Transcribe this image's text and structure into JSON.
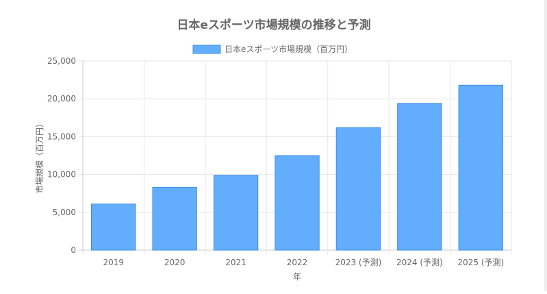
{
  "chart_data": {
    "type": "bar",
    "title": "日本eスポーツ市場規模の推移と予測",
    "xlabel": "年",
    "ylabel": "市場規模（百万円）",
    "categories": [
      "2019",
      "2020",
      "2021",
      "2022",
      "2023 (予測)",
      "2024 (予測)",
      "2025 (予測)"
    ],
    "series": [
      {
        "name": "日本eスポーツ市場規模（百万円）",
        "values": [
          6100,
          8300,
          9900,
          12500,
          16200,
          19400,
          21800
        ]
      }
    ],
    "ylim": [
      0,
      25000
    ],
    "yticks": [
      0,
      5000,
      10000,
      15000,
      20000,
      25000
    ],
    "ytick_labels": [
      "0",
      "5,000",
      "10,000",
      "15,000",
      "20,000",
      "25,000"
    ],
    "grid": true,
    "legend_position": "top-center",
    "colors": {
      "bar_fill": "#63aefc",
      "bar_stroke": "#3d8ee6",
      "grid": "#e6e6e6",
      "axis": "#cccccc",
      "title": "#666666",
      "text": "#666666"
    }
  }
}
